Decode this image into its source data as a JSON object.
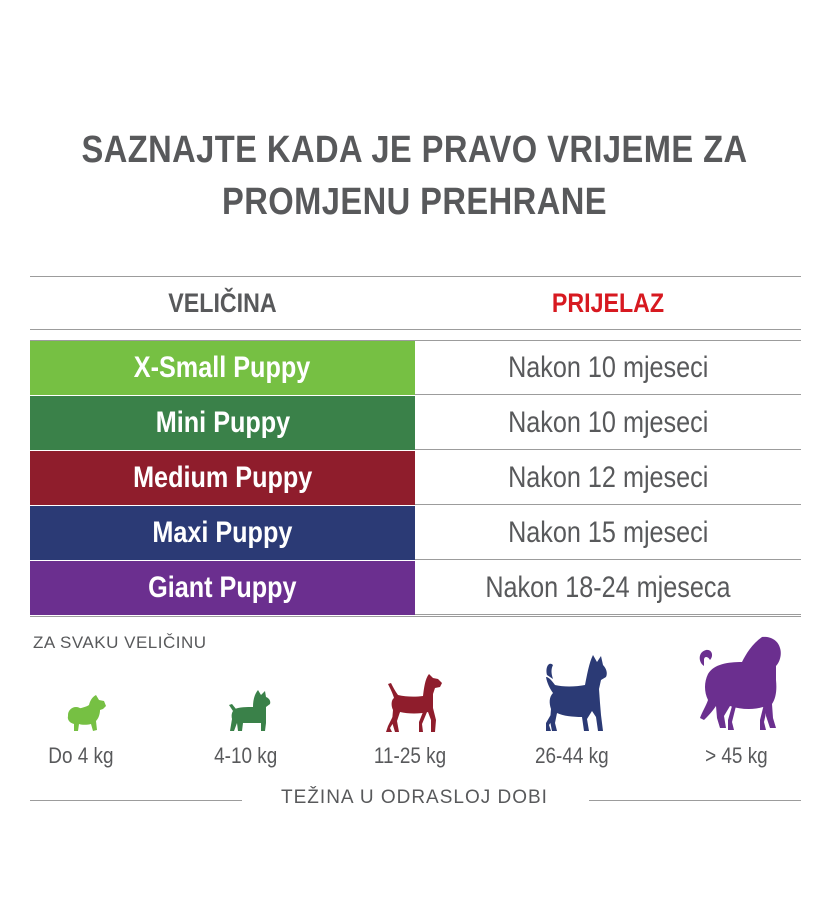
{
  "title": {
    "line1": "SAZNAJTE KADA JE PRAVO VRIJEME ZA",
    "line2": "PROMJENU PREHRANE"
  },
  "table": {
    "col_size": "VELIČINA",
    "col_transition": "PRIJELAZ",
    "rows": [
      {
        "name": "X-Small Puppy",
        "time": "Nakon 10 mjeseci",
        "color": "#76c043"
      },
      {
        "name": "Mini Puppy",
        "time": "Nakon 10 mjeseci",
        "color": "#3a8149"
      },
      {
        "name": "Medium Puppy",
        "time": "Nakon 12 mjeseci",
        "color": "#8f1d2c"
      },
      {
        "name": "Maxi Puppy",
        "time": "Nakon 15 mjeseci",
        "color": "#2b3a75"
      },
      {
        "name": "Giant Puppy",
        "time": "Nakon 18-24 mjeseca",
        "color": "#6b2f8f"
      }
    ]
  },
  "caption": "ZA SVAKU VELIČINU",
  "weights": [
    {
      "label": "Do 4 kg",
      "icon": "pomeranian-icon",
      "color": "#76c043"
    },
    {
      "label": "4-10 kg",
      "icon": "terrier-icon",
      "color": "#3a8149"
    },
    {
      "label": "11-25 kg",
      "icon": "medium-dog-icon",
      "color": "#8f1d2c"
    },
    {
      "label": "26-44 kg",
      "icon": "husky-icon",
      "color": "#2b3a75"
    },
    {
      "label": "> 45 kg",
      "icon": "mastiff-icon",
      "color": "#6b2f8f"
    }
  ],
  "footer": "TEŽINA U ODRASLOJ DOBI"
}
